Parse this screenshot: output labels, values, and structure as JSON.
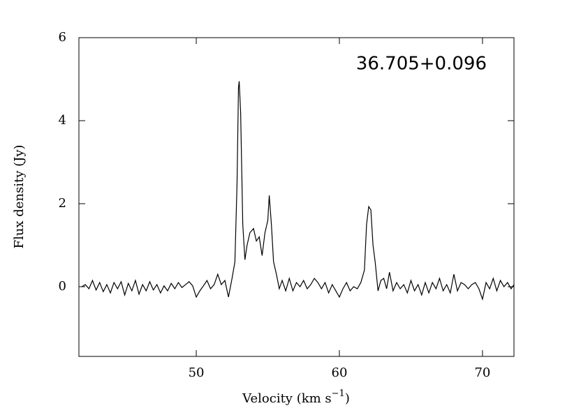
{
  "chart_data": {
    "type": "line",
    "annotation": "36.705+0.096",
    "xlabel_parts": [
      "Velocity (km s",
      "−1",
      ")"
    ],
    "ylabel": "Flux density (Jy)",
    "color": "#000000",
    "x": [
      42.0,
      42.25,
      42.5,
      42.75,
      43.0,
      43.25,
      43.5,
      43.75,
      44.0,
      44.25,
      44.5,
      44.75,
      45.0,
      45.25,
      45.5,
      45.75,
      46.0,
      46.25,
      46.5,
      46.75,
      47.0,
      47.25,
      47.5,
      47.75,
      48.0,
      48.25,
      48.5,
      48.75,
      49.0,
      49.25,
      49.5,
      49.75,
      50.0,
      50.25,
      50.5,
      50.75,
      51.0,
      51.25,
      51.5,
      51.75,
      52.0,
      52.25,
      52.5,
      52.7,
      52.85,
      52.95,
      53.0,
      53.1,
      53.25,
      53.4,
      53.55,
      53.75,
      54.0,
      54.2,
      54.4,
      54.6,
      54.8,
      55.0,
      55.1,
      55.25,
      55.4,
      55.6,
      55.8,
      56.0,
      56.25,
      56.5,
      56.75,
      57.0,
      57.25,
      57.5,
      57.75,
      58.0,
      58.25,
      58.5,
      58.75,
      59.0,
      59.25,
      59.5,
      59.75,
      60.0,
      60.25,
      60.5,
      60.75,
      61.0,
      61.25,
      61.5,
      61.75,
      61.9,
      62.05,
      62.2,
      62.35,
      62.5,
      62.7,
      62.9,
      63.1,
      63.3,
      63.5,
      63.75,
      64.0,
      64.25,
      64.5,
      64.75,
      65.0,
      65.25,
      65.5,
      65.75,
      66.0,
      66.25,
      66.5,
      66.75,
      67.0,
      67.25,
      67.5,
      67.75,
      68.0,
      68.25,
      68.5,
      68.75,
      69.0,
      69.25,
      69.5,
      69.75,
      70.0,
      70.25,
      70.5,
      70.75,
      71.0,
      71.25,
      71.5,
      71.75,
      72.0,
      72.2
    ],
    "values": [
      0.0,
      0.05,
      -0.05,
      0.15,
      -0.08,
      0.1,
      -0.12,
      0.05,
      -0.15,
      0.1,
      -0.05,
      0.12,
      -0.2,
      0.08,
      -0.1,
      0.15,
      -0.18,
      0.05,
      -0.1,
      0.12,
      -0.08,
      0.05,
      -0.15,
      0.02,
      -0.1,
      0.08,
      -0.05,
      0.1,
      -0.02,
      0.05,
      0.12,
      0.02,
      -0.25,
      -0.1,
      0.02,
      0.15,
      -0.05,
      0.05,
      0.3,
      0.05,
      0.15,
      -0.25,
      0.2,
      0.6,
      2.5,
      4.8,
      4.95,
      4.2,
      1.5,
      0.65,
      1.0,
      1.3,
      1.4,
      1.1,
      1.2,
      0.75,
      1.3,
      1.6,
      2.2,
      1.5,
      0.6,
      0.3,
      -0.05,
      0.15,
      -0.1,
      0.2,
      -0.1,
      0.1,
      0.0,
      0.15,
      -0.05,
      0.05,
      0.2,
      0.1,
      -0.05,
      0.1,
      -0.15,
      0.05,
      -0.1,
      -0.25,
      -0.05,
      0.1,
      -0.1,
      0.0,
      -0.05,
      0.1,
      0.4,
      1.5,
      1.93,
      1.85,
      1.0,
      0.6,
      -0.1,
      0.15,
      0.2,
      -0.05,
      0.35,
      -0.1,
      0.1,
      -0.05,
      0.05,
      -0.15,
      0.15,
      -0.1,
      0.05,
      -0.2,
      0.1,
      -0.15,
      0.1,
      -0.05,
      0.2,
      -0.1,
      0.05,
      -0.15,
      0.3,
      -0.1,
      0.1,
      0.05,
      -0.05,
      0.05,
      0.1,
      -0.05,
      -0.3,
      0.1,
      -0.05,
      0.2,
      -0.1,
      0.15,
      0.0,
      0.1,
      -0.05,
      0.05
    ],
    "xlim": [
      41.8,
      72.2
    ],
    "xticks": [
      50,
      60,
      70
    ],
    "ylim": [
      -1.68,
      6
    ],
    "yticks": [
      0,
      2,
      4,
      6
    ]
  }
}
